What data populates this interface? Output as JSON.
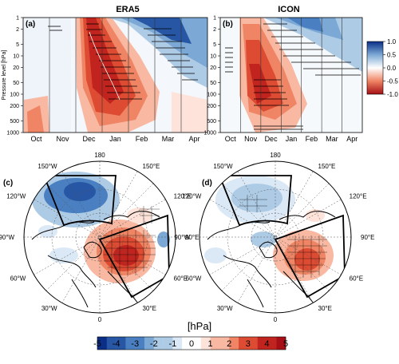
{
  "chart_data": [
    {
      "type": "heatmap",
      "panel_label": "(a)",
      "title": "ERA5",
      "ylabel": "Pressure level [hPa]",
      "y_scale": "log",
      "y_ticks": [
        "1",
        "2",
        "5",
        "10",
        "20",
        "50",
        "100",
        "200",
        "500",
        "1000"
      ],
      "x_months": [
        "Oct",
        "Nov",
        "Dec",
        "Jan",
        "Feb",
        "Mar",
        "Apr"
      ],
      "colorbar": {
        "ticks": [
          "1.0",
          "0.5",
          "0.0",
          "-0.5",
          "-1.0"
        ],
        "range": [
          -1.0,
          1.0
        ]
      },
      "features": [
        {
          "sign": "negative",
          "pressure_hPa": [
            1,
            20
          ],
          "months": "late Jan - Apr"
        },
        {
          "sign": "positive",
          "pressure_hPa": [
            1,
            100
          ],
          "months": "Dec - Feb",
          "peak": 1.0
        }
      ]
    },
    {
      "type": "heatmap",
      "panel_label": "(b)",
      "title": "ICON",
      "y_scale": "log",
      "x_months": [
        "Oct",
        "Nov",
        "Dec",
        "Jan",
        "Feb",
        "Mar",
        "Apr"
      ],
      "colorbar": {
        "ticks": [
          "1.0",
          "0.5",
          "0.0",
          "-0.5",
          "-1.0"
        ],
        "range": [
          -1.0,
          1.0
        ]
      },
      "features": [
        {
          "sign": "negative",
          "pressure_hPa": [
            1,
            10
          ],
          "months": "Jan - Apr"
        },
        {
          "sign": "positive",
          "pressure_hPa": [
            2,
            200
          ],
          "months": "Dec - Feb",
          "peak": 1.0
        }
      ]
    },
    {
      "type": "map",
      "panel_label": "(c)",
      "projection": "north polar stereographic",
      "lon_labels": [
        "180",
        "150°E",
        "120°E",
        "90°E",
        "60°E",
        "30°E",
        "0",
        "30°W",
        "60°W",
        "90°W",
        "120°W",
        "150°W"
      ],
      "anomalies_hPa": [
        {
          "region": "North Pacific",
          "sign": "negative",
          "value": -4
        },
        {
          "region": "Eurasia / Siberia",
          "sign": "positive",
          "value": 5
        }
      ]
    },
    {
      "type": "map",
      "panel_label": "(d)",
      "projection": "north polar stereographic",
      "lon_labels": [
        "180",
        "150°E",
        "120°E",
        "90°E",
        "60°E",
        "30°E",
        "0",
        "30°W",
        "60°W",
        "90°W",
        "120°W",
        "150°W"
      ],
      "anomalies_hPa": [
        {
          "region": "North Pacific",
          "sign": "negative",
          "value": -2
        },
        {
          "region": "Eurasia / Siberia",
          "sign": "positive",
          "value": 4
        }
      ]
    }
  ],
  "bottom_colorbar": {
    "unit": "[hPa]",
    "ticks": [
      "-5",
      "-4",
      "-3",
      "-2",
      "-1",
      "0",
      "1",
      "2",
      "3",
      "4",
      "5"
    ]
  },
  "colors": {
    "pos": [
      "#fde3da",
      "#f8b8a2",
      "#ef8564",
      "#dd4b32",
      "#c1241e",
      "#a50f15"
    ],
    "neg": [
      "#dbe8f5",
      "#aecbe6",
      "#7ba8d4",
      "#4a80c1",
      "#2756a5",
      "#0b2f87"
    ]
  }
}
